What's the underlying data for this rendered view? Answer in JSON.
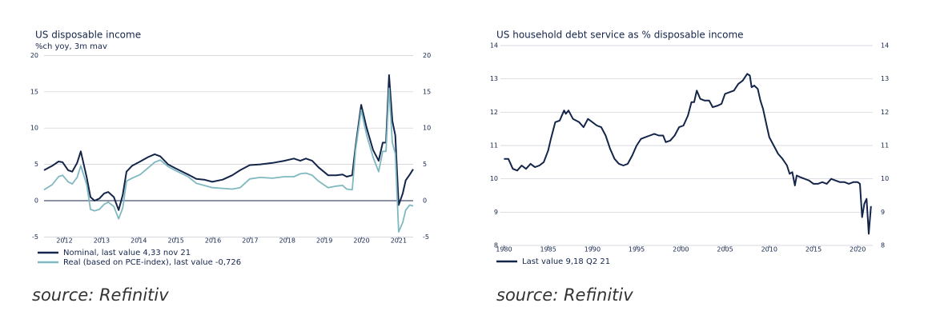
{
  "chart_data": [
    {
      "type": "line",
      "title": "US disposable income",
      "subtitle": "%ch yoy, 3m mav",
      "source": "source: Refinitiv",
      "x": [
        2011.95,
        2012.17,
        2012.34,
        2012.45,
        2012.6,
        2012.71,
        2012.84,
        2012.94,
        2013.1,
        2013.2,
        2013.31,
        2013.44,
        2013.57,
        2013.68,
        2013.83,
        2013.96,
        2014.07,
        2014.17,
        2014.32,
        2014.54,
        2014.75,
        2014.93,
        2015.08,
        2015.29,
        2015.51,
        2015.83,
        2016.05,
        2016.26,
        2016.48,
        2016.76,
        2017.02,
        2017.23,
        2017.49,
        2017.77,
        2018.1,
        2018.42,
        2018.68,
        2018.85,
        2019.0,
        2019.17,
        2019.34,
        2019.6,
        2019.82,
        2019.99,
        2020.1,
        2020.25,
        2020.34,
        2020.49,
        2020.64,
        2020.81,
        2020.96,
        2021.07,
        2021.16,
        2021.24,
        2021.33,
        2021.41,
        2021.5,
        2021.61,
        2021.69,
        2021.8,
        2021.89
      ],
      "series": [
        {
          "name": "Nominal, last value 4,33 nov 21",
          "color": "#14254a",
          "values": [
            4.2,
            4.8,
            5.4,
            5.3,
            4.2,
            4.0,
            5.2,
            6.8,
            3.2,
            0.5,
            0,
            0.3,
            1.0,
            1.2,
            0.5,
            -1.3,
            0.8,
            4.0,
            4.8,
            5.4,
            6.0,
            6.4,
            6.1,
            5.0,
            4.4,
            3.6,
            3.0,
            2.9,
            2.6,
            2.9,
            3.5,
            4.2,
            4.9,
            5.0,
            5.2,
            5.5,
            5.8,
            5.5,
            5.8,
            5.5,
            4.6,
            3.5,
            3.5,
            3.6,
            3.3,
            3.5,
            7.5,
            13.2,
            10.0,
            7.0,
            5.5,
            8.0,
            8.0,
            17.3,
            11.0,
            9.0,
            -0.6,
            1.0,
            2.8,
            3.6,
            4.33
          ]
        },
        {
          "name": "Real (based on PCE-index), last value -0,726",
          "color": "#7fb8c0",
          "values": [
            1.5,
            2.2,
            3.3,
            3.5,
            2.6,
            2.3,
            3.2,
            4.8,
            2.2,
            -1.2,
            -1.4,
            -1.2,
            -0.5,
            -0.2,
            -0.8,
            -2.5,
            -1.0,
            2.7,
            3.1,
            3.6,
            4.5,
            5.3,
            5.6,
            4.7,
            4.1,
            3.3,
            2.4,
            2.1,
            1.8,
            1.7,
            1.6,
            1.8,
            3.0,
            3.2,
            3.1,
            3.3,
            3.3,
            3.7,
            3.8,
            3.5,
            2.7,
            1.8,
            2.0,
            2.1,
            1.6,
            1.5,
            7.0,
            12.5,
            9.0,
            6.0,
            4.0,
            6.8,
            6.8,
            15.5,
            8.0,
            6.5,
            -4.3,
            -3.0,
            -1.3,
            -0.6,
            -0.726
          ]
        }
      ],
      "xlim": [
        2011.95,
        2021.89
      ],
      "xticks": [
        {
          "value": 2012.5,
          "label": "2012"
        },
        {
          "value": 2013.5,
          "label": "2013"
        },
        {
          "value": 2014.5,
          "label": "2014"
        },
        {
          "value": 2015.5,
          "label": "2015"
        },
        {
          "value": 2016.5,
          "label": "2016"
        },
        {
          "value": 2017.5,
          "label": "2017"
        },
        {
          "value": 2018.5,
          "label": "2018"
        },
        {
          "value": 2019.5,
          "label": "2019"
        },
        {
          "value": 2020.5,
          "label": "2020"
        },
        {
          "value": 2021.5,
          "label": "2021"
        }
      ],
      "ylim": [
        -5,
        20
      ],
      "yticks": [
        -5,
        0,
        5,
        10,
        15,
        20
      ],
      "grid": true
    },
    {
      "type": "line",
      "title": "US household debt service as % disposable income",
      "source": "source: Refinitiv",
      "x": [
        1980,
        1980.5,
        1981,
        1981.5,
        1982,
        1982.5,
        1983,
        1983.5,
        1984,
        1984.5,
        1985,
        1985.3,
        1985.8,
        1986.3,
        1986.8,
        1987,
        1987.3,
        1987.8,
        1988.5,
        1989,
        1989.5,
        1990,
        1990.5,
        1991,
        1991.5,
        1992,
        1992.5,
        1993,
        1993.5,
        1994,
        1994.5,
        1995,
        1995.5,
        1996,
        1996.5,
        1997,
        1997.5,
        1998,
        1998.3,
        1998.8,
        1999.3,
        1999.8,
        2000.3,
        2000.8,
        2001.2,
        2001.5,
        2001.8,
        2002.2,
        2002.7,
        2003.2,
        2003.6,
        2004.2,
        2004.6,
        2005,
        2005.5,
        2006,
        2006.5,
        2007,
        2007.5,
        2007.8,
        2008,
        2008.3,
        2008.7,
        2009,
        2009.3,
        2009.7,
        2010,
        2010.5,
        2011,
        2011.5,
        2012,
        2012.3,
        2012.6,
        2012.9,
        2013.1,
        2013.5,
        2014,
        2014.5,
        2015,
        2015.5,
        2016,
        2016.5,
        2017,
        2017.5,
        2018,
        2018.5,
        2019,
        2019.5,
        2020,
        2020.25,
        2020.5,
        2020.75,
        2021,
        2021.25,
        2021.5
      ],
      "series": [
        {
          "name": "Last value 9,18 Q2 21",
          "color": "#14254a",
          "values": [
            10.6,
            10.6,
            10.3,
            10.25,
            10.4,
            10.3,
            10.45,
            10.35,
            10.4,
            10.5,
            10.85,
            11.2,
            11.7,
            11.75,
            12.05,
            11.95,
            12.05,
            11.8,
            11.7,
            11.55,
            11.8,
            11.7,
            11.6,
            11.55,
            11.3,
            10.9,
            10.6,
            10.45,
            10.4,
            10.45,
            10.7,
            11.0,
            11.2,
            11.25,
            11.3,
            11.35,
            11.3,
            11.3,
            11.1,
            11.15,
            11.3,
            11.55,
            11.6,
            11.9,
            12.3,
            12.3,
            12.65,
            12.4,
            12.35,
            12.35,
            12.15,
            12.2,
            12.25,
            12.55,
            12.6,
            12.65,
            12.85,
            12.95,
            13.15,
            13.1,
            12.75,
            12.8,
            12.7,
            12.35,
            12.1,
            11.6,
            11.25,
            11.0,
            10.75,
            10.6,
            10.4,
            10.15,
            10.2,
            9.8,
            10.1,
            10.05,
            10.0,
            9.95,
            9.85,
            9.85,
            9.9,
            9.85,
            10.0,
            9.95,
            9.9,
            9.9,
            9.85,
            9.9,
            9.9,
            9.85,
            8.85,
            9.25,
            9.4,
            8.35,
            9.18
          ]
        }
      ],
      "xlim": [
        1979.6,
        2021.7
      ],
      "xticks": [
        1980,
        1985,
        1990,
        1995,
        2000,
        2005,
        2010,
        2015,
        2020
      ],
      "ylim": [
        8,
        14
      ],
      "yticks": [
        8,
        9,
        10,
        11,
        12,
        13,
        14
      ],
      "grid": true
    }
  ]
}
